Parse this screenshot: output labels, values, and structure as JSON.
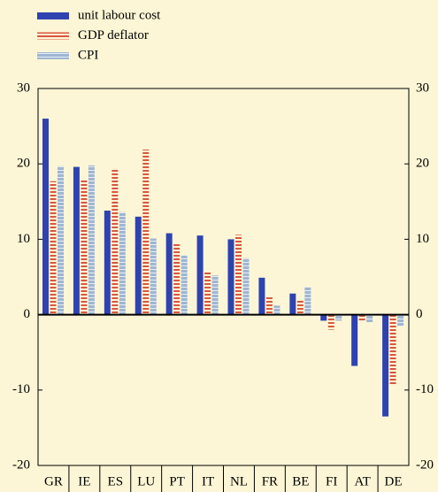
{
  "chart_data": {
    "type": "bar",
    "categories": [
      "GR",
      "IE",
      "ES",
      "LU",
      "PT",
      "IT",
      "NL",
      "FR",
      "BE",
      "FI",
      "AT",
      "DE"
    ],
    "series": [
      {
        "name": "unit labour cost",
        "color": "#2e43b0",
        "values": [
          26,
          19.6,
          13.8,
          13,
          10.8,
          10.5,
          10,
          4.9,
          2.8,
          -0.8,
          -6.8,
          -13.5
        ]
      },
      {
        "name": "GDP deflator",
        "color": "#d9563f",
        "values": [
          17.7,
          18,
          19.3,
          21.9,
          9.5,
          5.7,
          10.6,
          2.3,
          1.9,
          -2,
          -0.8,
          -9.2
        ]
      },
      {
        "name": "CPI",
        "color": "#9fb6d3",
        "values": [
          19.7,
          19.8,
          13.6,
          10.1,
          7.9,
          5.2,
          7.5,
          1.2,
          3.7,
          -0.8,
          -1,
          -1.5
        ]
      }
    ],
    "ylim": [
      -20,
      30
    ],
    "yticks": [
      -20,
      -10,
      0,
      10,
      20,
      30
    ],
    "y2lim": [
      -20,
      30
    ],
    "y2ticks": [
      -20,
      -10,
      0,
      10,
      20,
      30
    ]
  }
}
